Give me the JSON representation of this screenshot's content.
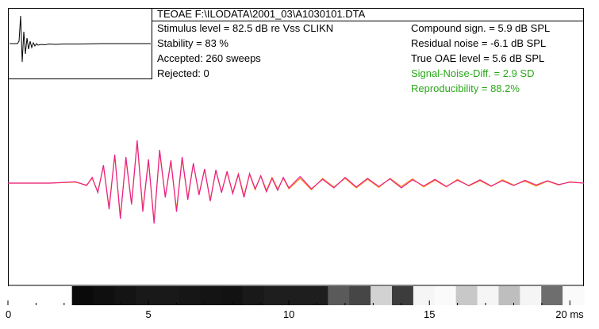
{
  "header": {
    "title": "TEOAE F:\\ILODATA\\2001_03\\A1030101.DTA"
  },
  "left_info": {
    "stimulus": "Stimulus level = 82.5 dB re Vss CLIKN",
    "stability": "Stability = 83 %",
    "accepted": "Accepted: 260 sweeps",
    "rejected": "Rejected:   0"
  },
  "right_info": {
    "compound": "Compound sign. =  5.9 dB SPL",
    "residual": "Residual noise = -6.1 dB SPL",
    "true_oae": "True OAE level =   5.6 dB SPL",
    "snd": "Signal-Noise-Diff. =  2.9 SD",
    "reproducibility": "Reproducibility = 88.2%"
  },
  "colors": {
    "trace_a": "#e8208a",
    "trace_b": "#ff8c1a",
    "green_text": "#2aa81a",
    "stimulus_trace": "#000000"
  },
  "chart_data": {
    "type": "line",
    "x_ticks": [
      "0",
      "5",
      "10",
      "15",
      "20 ms"
    ],
    "x_tick_values": [
      0,
      5,
      10,
      15,
      20
    ],
    "xlim": [
      0,
      20.5
    ],
    "ylim": [
      -1,
      1
    ],
    "series": [
      {
        "color": "#e8208a",
        "x": [
          0,
          1.5,
          2.4,
          2.8,
          3.0,
          3.2,
          3.4,
          3.6,
          3.8,
          4.0,
          4.2,
          4.4,
          4.6,
          4.8,
          5.0,
          5.2,
          5.4,
          5.6,
          5.8,
          6.0,
          6.2,
          6.4,
          6.6,
          6.8,
          7.0,
          7.2,
          7.4,
          7.6,
          7.8,
          8.0,
          8.2,
          8.4,
          8.6,
          8.8,
          9.0,
          9.2,
          9.4,
          9.6,
          9.8,
          10.0,
          10.4,
          10.8,
          11.2,
          11.6,
          12.0,
          12.4,
          12.8,
          13.2,
          13.6,
          14.0,
          14.4,
          14.8,
          15.2,
          15.6,
          16.0,
          16.4,
          16.8,
          17.2,
          17.6,
          18.0,
          18.4,
          18.8,
          19.2,
          19.6,
          20.0,
          20.5
        ],
        "y": [
          0,
          0,
          0.03,
          -0.05,
          0.12,
          -0.2,
          0.38,
          -0.55,
          0.6,
          -0.75,
          0.55,
          -0.45,
          0.9,
          -0.6,
          0.5,
          -0.85,
          0.7,
          -0.3,
          0.48,
          -0.6,
          0.55,
          -0.35,
          0.42,
          -0.25,
          0.3,
          -0.38,
          0.28,
          -0.2,
          0.25,
          -0.22,
          0.18,
          -0.3,
          0.2,
          -0.12,
          0.15,
          -0.18,
          0.1,
          -0.15,
          0.12,
          -0.1,
          0.14,
          -0.12,
          0.08,
          -0.1,
          0.12,
          -0.08,
          0.1,
          -0.07,
          0.09,
          -0.1,
          0.07,
          -0.06,
          0.08,
          -0.07,
          0.06,
          -0.05,
          0.07,
          -0.06,
          0.05,
          -0.05,
          0.06,
          -0.04,
          0.05,
          -0.03,
          0.02,
          0
        ]
      },
      {
        "color": "#ff8c1a",
        "x": [
          0,
          1.5,
          2.4,
          2.8,
          3.0,
          3.2,
          3.4,
          3.6,
          3.8,
          4.0,
          4.2,
          4.4,
          4.6,
          4.8,
          5.0,
          5.2,
          5.4,
          5.6,
          5.8,
          6.0,
          6.2,
          6.4,
          6.6,
          6.8,
          7.0,
          7.2,
          7.4,
          7.6,
          7.8,
          8.0,
          8.2,
          8.4,
          8.6,
          8.8,
          9.0,
          9.2,
          9.4,
          9.6,
          9.8,
          10.0,
          10.4,
          10.8,
          11.2,
          11.6,
          12.0,
          12.4,
          12.8,
          13.2,
          13.6,
          14.0,
          14.4,
          14.8,
          15.2,
          15.6,
          16.0,
          16.4,
          16.8,
          17.2,
          17.6,
          18.0,
          18.4,
          18.8,
          19.2,
          19.6,
          20.0,
          20.5
        ],
        "y": [
          0,
          0,
          0.02,
          -0.04,
          0.1,
          -0.18,
          0.35,
          -0.5,
          0.58,
          -0.7,
          0.5,
          -0.42,
          0.85,
          -0.55,
          0.48,
          -0.8,
          0.65,
          -0.28,
          0.45,
          -0.55,
          0.5,
          -0.3,
          0.4,
          -0.22,
          0.28,
          -0.35,
          0.25,
          -0.18,
          0.22,
          -0.2,
          0.2,
          -0.26,
          0.18,
          -0.14,
          0.16,
          -0.15,
          0.12,
          -0.12,
          0.1,
          -0.12,
          0.1,
          -0.14,
          0.1,
          -0.08,
          0.1,
          -0.1,
          0.08,
          -0.09,
          0.1,
          -0.07,
          0.09,
          -0.08,
          0.06,
          -0.08,
          0.08,
          -0.06,
          0.05,
          -0.07,
          0.07,
          -0.04,
          0.04,
          -0.06,
          0.04,
          -0.04,
          0.03,
          0
        ]
      }
    ],
    "spectrum_bar_gray_levels": [
      255,
      255,
      255,
      10,
      15,
      20,
      25,
      25,
      22,
      20,
      18,
      25,
      30,
      30,
      30,
      90,
      70,
      210,
      60,
      245,
      250,
      200,
      245,
      190,
      245,
      110,
      250
    ]
  }
}
